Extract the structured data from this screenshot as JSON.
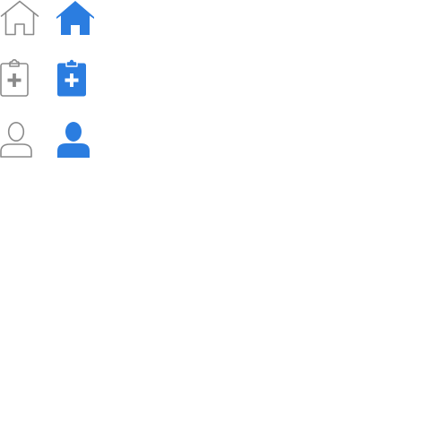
{
  "colors": {
    "inactive": "#8a8a8a",
    "active": "#2b7de0",
    "background": "#ffffff"
  },
  "icons": [
    {
      "name": "home",
      "state": "inactive",
      "style": "outline"
    },
    {
      "name": "home",
      "state": "active",
      "style": "filled"
    },
    {
      "name": "clipboard-plus",
      "state": "inactive",
      "style": "outline"
    },
    {
      "name": "clipboard-plus",
      "state": "active",
      "style": "filled"
    },
    {
      "name": "user",
      "state": "inactive",
      "style": "outline"
    },
    {
      "name": "user",
      "state": "active",
      "style": "filled"
    }
  ]
}
